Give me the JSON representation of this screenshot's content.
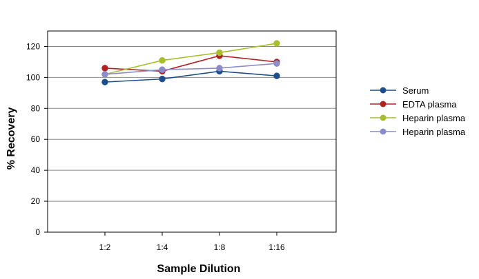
{
  "chart_data": {
    "type": "line",
    "title": "",
    "xlabel": "Sample Dilution",
    "ylabel": "% Recovery",
    "categories": [
      "1:2",
      "1:4",
      "1:8",
      "1:16"
    ],
    "ylim": [
      0,
      130
    ],
    "yticks": [
      0,
      20,
      40,
      60,
      80,
      100,
      120
    ],
    "grid": true,
    "legend_position": "right",
    "series": [
      {
        "name": "Serum",
        "color": "#1F4E8C",
        "values": [
          97,
          99,
          104,
          101
        ]
      },
      {
        "name": "EDTA plasma",
        "color": "#B22222",
        "values": [
          106,
          104,
          114,
          110
        ]
      },
      {
        "name": "Heparin plasma",
        "color": "#A8BE2E",
        "values": [
          102,
          111,
          116,
          122
        ]
      },
      {
        "name": "Heparin plasma",
        "color": "#8C8CC8",
        "values": [
          102,
          105,
          106,
          109
        ]
      }
    ]
  }
}
